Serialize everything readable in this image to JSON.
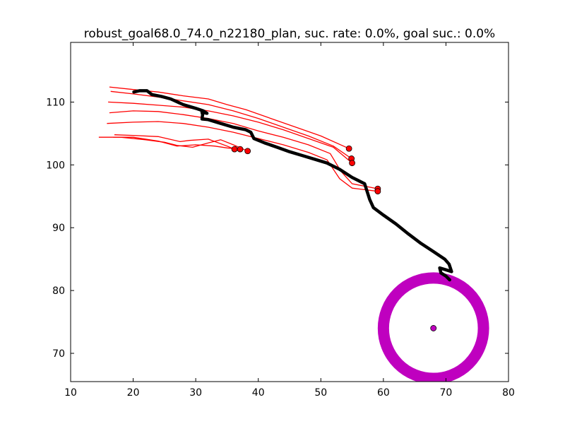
{
  "chart_data": {
    "type": "scatter",
    "title": "robust_goal68.0_74.0_n22180_plan, suc. rate: 0.0%, goal suc.: 0.0%",
    "xlabel": "",
    "ylabel": "",
    "xlim": [
      10,
      80
    ],
    "ylim": [
      65.5,
      119.5
    ],
    "x_ticks": [
      10,
      20,
      30,
      40,
      50,
      60,
      70,
      80
    ],
    "y_ticks": [
      70,
      80,
      90,
      100,
      110
    ],
    "grid": false,
    "legend": "none",
    "colors": {
      "trajectories": "#ff0000",
      "plan": "#000000",
      "goal": "#bf00bf",
      "axes": "#000000"
    },
    "goal": {
      "center": [
        68.0,
        74.0
      ],
      "radius": 8.0
    },
    "plan_path": [
      [
        20.1,
        111.6
      ],
      [
        21.0,
        111.8
      ],
      [
        22.2,
        111.8
      ],
      [
        23.0,
        111.2
      ],
      [
        24.5,
        110.9
      ],
      [
        26.0,
        110.5
      ],
      [
        28.0,
        109.6
      ],
      [
        29.0,
        109.3
      ],
      [
        30.0,
        109.0
      ],
      [
        31.2,
        108.6
      ],
      [
        31.8,
        108.2
      ],
      [
        31.0,
        108.4
      ],
      [
        31.1,
        108.0
      ],
      [
        31.0,
        107.3
      ],
      [
        32.0,
        107.2
      ],
      [
        34.0,
        106.6
      ],
      [
        36.0,
        106.0
      ],
      [
        38.0,
        105.6
      ],
      [
        38.8,
        105.2
      ],
      [
        39.3,
        104.2
      ],
      [
        41.0,
        103.5
      ],
      [
        43.0,
        102.8
      ],
      [
        45.0,
        102.1
      ],
      [
        47.0,
        101.5
      ],
      [
        49.0,
        100.9
      ],
      [
        51.0,
        100.3
      ],
      [
        53.0,
        99.3
      ],
      [
        55.0,
        98.0
      ],
      [
        57.0,
        97.0
      ],
      [
        57.8,
        94.5
      ],
      [
        58.4,
        93.2
      ],
      [
        60.0,
        92.0
      ],
      [
        62.0,
        90.6
      ],
      [
        64.0,
        89.0
      ],
      [
        66.0,
        87.5
      ],
      [
        68.0,
        86.2
      ],
      [
        69.8,
        85.0
      ],
      [
        70.5,
        84.2
      ],
      [
        70.9,
        83.0
      ],
      [
        70.0,
        83.3
      ],
      [
        69.0,
        83.6
      ],
      [
        69.2,
        82.8
      ],
      [
        70.0,
        82.3
      ],
      [
        70.6,
        81.7
      ]
    ],
    "trajectories": [
      {
        "points": [
          [
            16.2,
            112.4
          ],
          [
            20.0,
            112.0
          ],
          [
            24.0,
            111.6
          ],
          [
            28.0,
            111.0
          ],
          [
            32.0,
            110.5
          ],
          [
            35.0,
            109.6
          ],
          [
            38.0,
            108.8
          ],
          [
            42.0,
            107.4
          ],
          [
            46.0,
            106.0
          ],
          [
            50.0,
            104.6
          ],
          [
            54.5,
            102.6
          ]
        ],
        "end": [
          54.5,
          102.6
        ]
      },
      {
        "points": [
          [
            16.4,
            111.7
          ],
          [
            20.0,
            111.3
          ],
          [
            24.0,
            110.8
          ],
          [
            28.0,
            110.2
          ],
          [
            32.0,
            109.6
          ],
          [
            36.0,
            108.6
          ],
          [
            40.0,
            107.4
          ],
          [
            44.0,
            106.0
          ],
          [
            48.0,
            104.6
          ],
          [
            52.0,
            103.0
          ],
          [
            54.9,
            101.0
          ]
        ],
        "end": [
          54.9,
          101.0
        ]
      },
      {
        "points": [
          [
            16.0,
            110.0
          ],
          [
            20.0,
            109.8
          ],
          [
            24.0,
            109.5
          ],
          [
            28.0,
            109.2
          ],
          [
            32.0,
            108.6
          ],
          [
            36.0,
            107.8
          ],
          [
            40.0,
            106.8
          ],
          [
            44.0,
            105.6
          ],
          [
            48.0,
            104.2
          ],
          [
            52.0,
            102.8
          ],
          [
            55.0,
            100.3
          ]
        ],
        "end": [
          55.0,
          100.3
        ]
      },
      {
        "points": [
          [
            16.2,
            108.3
          ],
          [
            20.0,
            108.6
          ],
          [
            24.0,
            108.5
          ],
          [
            28.0,
            108.0
          ],
          [
            32.0,
            107.4
          ],
          [
            36.0,
            106.6
          ],
          [
            40.0,
            105.4
          ],
          [
            44.0,
            104.4
          ],
          [
            48.0,
            103.2
          ],
          [
            51.5,
            101.8
          ],
          [
            53.2,
            99.0
          ],
          [
            55.0,
            97.0
          ],
          [
            59.1,
            96.2
          ]
        ],
        "end": [
          59.1,
          96.2
        ]
      },
      {
        "points": [
          [
            15.8,
            106.6
          ],
          [
            20.0,
            106.8
          ],
          [
            24.0,
            106.9
          ],
          [
            28.0,
            106.6
          ],
          [
            32.0,
            106.0
          ],
          [
            36.0,
            105.2
          ],
          [
            40.0,
            104.2
          ],
          [
            44.0,
            103.2
          ],
          [
            48.0,
            102.0
          ],
          [
            51.0,
            100.8
          ],
          [
            53.0,
            97.8
          ],
          [
            55.0,
            96.3
          ],
          [
            59.1,
            95.8
          ]
        ],
        "end": [
          59.1,
          95.8
        ]
      },
      {
        "points": [
          [
            17.0,
            104.8
          ],
          [
            20.0,
            104.7
          ],
          [
            24.0,
            104.5
          ],
          [
            27.5,
            103.7
          ],
          [
            29.0,
            103.9
          ],
          [
            32.0,
            104.1
          ],
          [
            35.0,
            103.0
          ],
          [
            36.2,
            102.5
          ]
        ],
        "end": [
          36.2,
          102.5
        ]
      },
      {
        "points": [
          [
            16.8,
            104.4
          ],
          [
            20.0,
            104.4
          ],
          [
            24.0,
            103.8
          ],
          [
            27.0,
            103.0
          ],
          [
            30.0,
            103.2
          ],
          [
            33.0,
            103.0
          ],
          [
            35.0,
            102.7
          ],
          [
            37.1,
            102.5
          ]
        ],
        "end": [
          37.1,
          102.5
        ]
      },
      {
        "points": [
          [
            14.5,
            104.4
          ],
          [
            18.0,
            104.4
          ],
          [
            22.0,
            104.0
          ],
          [
            25.0,
            103.6
          ],
          [
            27.0,
            103.1
          ],
          [
            29.5,
            102.8
          ],
          [
            32.0,
            103.5
          ],
          [
            34.0,
            104.0
          ],
          [
            36.0,
            103.2
          ],
          [
            38.3,
            102.2
          ]
        ],
        "end": [
          38.3,
          102.2
        ]
      }
    ]
  }
}
